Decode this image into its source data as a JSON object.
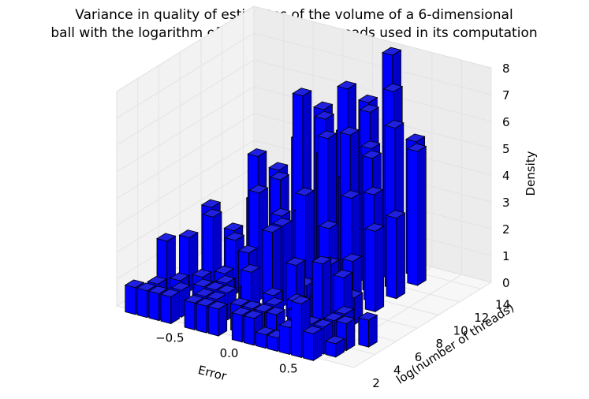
{
  "chart_data": {
    "type": "bar3d",
    "title_lines": [
      "Variance in quality of estimates of the volume of a 6-dimensional",
      "ball with the logarithm of the number of threads used in its computation"
    ],
    "xlabel": "Error",
    "ylabel": "log(number of threads)",
    "zlabel": "Density",
    "x_ticks": [
      "−0.5",
      "0.0",
      "0.5"
    ],
    "y_ticks": [
      "2",
      "4",
      "6",
      "8",
      "10",
      "12",
      "14"
    ],
    "z_ticks": [
      "0",
      "1",
      "2",
      "3",
      "4",
      "5",
      "6",
      "7",
      "8"
    ],
    "xlim": [
      -1.0,
      1.0
    ],
    "ylim": [
      2,
      15
    ],
    "zlim": [
      0,
      8
    ],
    "bar_color": "#0000ff",
    "series": [
      {
        "y": 2,
        "x": [
          -0.85,
          -0.75,
          -0.65,
          -0.55,
          -0.35,
          -0.25,
          -0.15,
          0.05,
          0.15,
          0.25,
          0.35,
          0.45,
          0.55,
          0.65
        ],
        "values": [
          1,
          1,
          1,
          1,
          1,
          1,
          1,
          1,
          1,
          0.5,
          0.5,
          1,
          2,
          1
        ]
      },
      {
        "y": 3,
        "x": [
          -0.75,
          -0.55,
          -0.35,
          -0.25,
          -0.05,
          0.05,
          0.15,
          0.25,
          0.45,
          0.55,
          0.65,
          0.75
        ],
        "values": [
          1,
          1,
          1,
          1,
          1,
          1,
          1,
          1,
          1,
          1,
          1,
          0.5
        ]
      },
      {
        "y": 4,
        "x": [
          -0.65,
          -0.45,
          -0.35,
          -0.25,
          -0.05,
          0.15,
          0.35,
          0.55,
          0.65,
          0.75
        ],
        "values": [
          1,
          1,
          1,
          1,
          2,
          1,
          1,
          3,
          1,
          1
        ]
      },
      {
        "y": 5,
        "x": [
          -0.85,
          -0.55,
          -0.35,
          -0.15,
          0.05,
          0.25,
          0.45,
          0.65,
          0.85
        ],
        "values": [
          2,
          1,
          1,
          1,
          1,
          1,
          2,
          1,
          1
        ]
      },
      {
        "y": 6,
        "x": [
          -0.75,
          -0.55,
          -0.45,
          -0.25,
          -0.05,
          0.15,
          0.35,
          0.55
        ],
        "values": [
          2,
          3,
          1,
          2,
          3,
          2,
          1,
          2
        ]
      },
      {
        "y": 7,
        "x": [
          -0.65,
          -0.45,
          -0.25,
          -0.05,
          0.15,
          0.35,
          0.55
        ],
        "values": [
          3,
          2,
          4,
          3,
          1,
          2,
          1
        ]
      },
      {
        "y": 8,
        "x": [
          -0.55,
          -0.35,
          -0.15,
          0.05,
          0.25,
          0.45
        ],
        "values": [
          2,
          5,
          3,
          4,
          3,
          2
        ]
      },
      {
        "y": 9,
        "x": [
          -0.45,
          -0.25,
          -0.05,
          0.15,
          0.35,
          0.55
        ],
        "values": [
          3,
          4,
          3,
          6,
          4,
          3
        ]
      },
      {
        "y": 10,
        "x": [
          -0.35,
          -0.15,
          0.05,
          0.25,
          0.45
        ],
        "values": [
          4,
          7,
          5,
          6,
          4
        ]
      },
      {
        "y": 11,
        "x": [
          -0.25,
          -0.05,
          0.15,
          0.35,
          0.55
        ],
        "values": [
          5,
          6,
          4,
          5,
          3
        ]
      },
      {
        "y": 12,
        "x": [
          -0.15,
          0.05,
          0.25,
          0.45
        ],
        "values": [
          6,
          7,
          5,
          6
        ]
      },
      {
        "y": 13,
        "x": [
          -0.05,
          0.15,
          0.35,
          0.55
        ],
        "values": [
          5,
          6,
          7,
          5
        ]
      },
      {
        "y": 14,
        "x": [
          0.05,
          0.25,
          0.45
        ],
        "values": [
          6,
          8,
          5
        ]
      }
    ]
  }
}
